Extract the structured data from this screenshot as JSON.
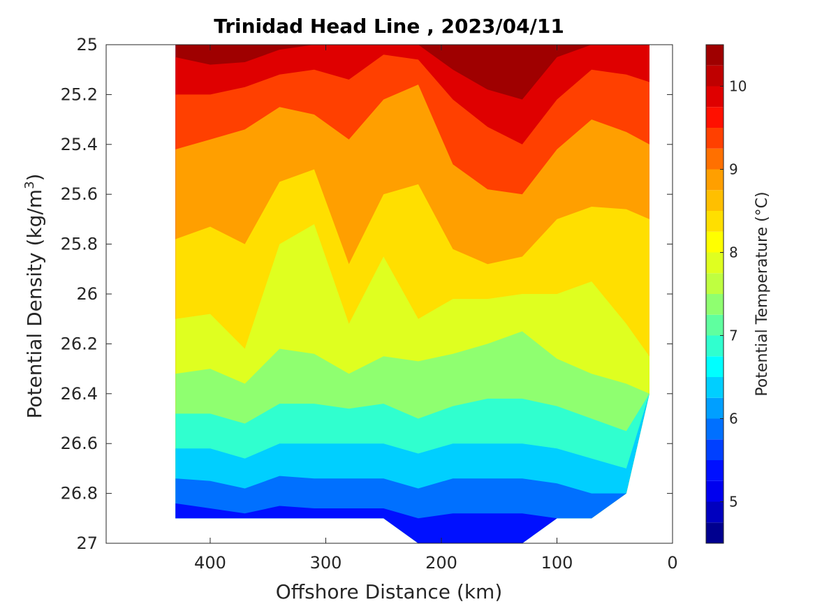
{
  "chart_data": {
    "type": "contour",
    "title": "Trinidad Head Line , 2023/04/11",
    "xlabel": "Offshore Distance (km)",
    "ylabel": "Potential Density (kg/m",
    "ylabel_superscript": "3",
    "ylabel_suffix": ")",
    "xlim": [
      490,
      0
    ],
    "ylim": [
      25,
      27
    ],
    "x_ticks": [
      400,
      300,
      200,
      100,
      0
    ],
    "x_tick_labels": [
      "400",
      "300",
      "200",
      "100",
      "0"
    ],
    "y_ticks": [
      25,
      25.2,
      25.4,
      25.6,
      25.8,
      26,
      26.2,
      26.4,
      26.6,
      26.8,
      27
    ],
    "y_tick_labels": [
      "25",
      "25.2",
      "25.4",
      "25.6",
      "25.8",
      "26",
      "26.2",
      "26.4",
      "26.6",
      "26.8",
      "27"
    ],
    "grid": false,
    "colorbar": {
      "label": "Potential Temperature (°C)",
      "range": [
        4.5,
        10.5
      ],
      "tick_values": [
        5,
        6,
        7,
        8,
        9,
        10
      ],
      "tick_labels": [
        "5",
        "6",
        "7",
        "8",
        "9",
        "10"
      ],
      "levels": [
        4.5,
        4.75,
        5,
        5.25,
        5.5,
        5.75,
        6,
        6.25,
        6.5,
        6.75,
        7,
        7.25,
        7.5,
        7.75,
        8,
        8.25,
        8.5,
        8.75,
        9,
        9.25,
        9.5,
        9.75,
        10,
        10.25,
        10.5
      ],
      "colors": [
        "#00008f",
        "#0000bf",
        "#0000ef",
        "#0010ff",
        "#0040ff",
        "#0070ff",
        "#009fff",
        "#00cfff",
        "#00ffff",
        "#30ffcf",
        "#5fff9f",
        "#8fff70",
        "#bfff40",
        "#dfff20",
        "#ffff00",
        "#ffdf00",
        "#ffbf00",
        "#ff9f00",
        "#ff7000",
        "#ff4000",
        "#ff1000",
        "#df0000",
        "#bf0000",
        "#9f0000"
      ]
    },
    "distance_km": [
      430,
      400,
      370,
      340,
      310,
      280,
      250,
      220,
      190,
      160,
      130,
      100,
      70,
      40,
      20
    ],
    "station_bottom_density": [
      26.9,
      26.9,
      26.9,
      26.9,
      26.9,
      26.9,
      26.9,
      27.0,
      27.0,
      27.0,
      27.0,
      26.9,
      26.9,
      26.8,
      26.4
    ],
    "isotherm_density": [
      {
        "temperature": 10.0,
        "density": [
          25.05,
          25.08,
          25.07,
          25.02,
          25.0,
          25.0,
          25.0,
          25.0,
          25.1,
          25.18,
          25.22,
          25.05,
          25.0,
          25.0,
          25.0
        ]
      },
      {
        "temperature": 9.5,
        "density": [
          25.2,
          25.2,
          25.17,
          25.12,
          25.1,
          25.14,
          25.04,
          25.06,
          25.22,
          25.33,
          25.4,
          25.22,
          25.1,
          25.12,
          25.15
        ]
      },
      {
        "temperature": 9.0,
        "density": [
          25.42,
          25.38,
          25.34,
          25.25,
          25.28,
          25.38,
          25.22,
          25.16,
          25.48,
          25.58,
          25.6,
          25.42,
          25.3,
          25.35,
          25.4
        ]
      },
      {
        "temperature": 8.5,
        "density": [
          25.78,
          25.73,
          25.8,
          25.55,
          25.5,
          25.88,
          25.6,
          25.56,
          25.82,
          25.88,
          25.85,
          25.7,
          25.65,
          25.66,
          25.7
        ]
      },
      {
        "temperature": 8.0,
        "density": [
          26.1,
          26.08,
          26.22,
          25.8,
          25.72,
          26.12,
          25.85,
          26.1,
          26.02,
          26.02,
          26.0,
          26.0,
          25.95,
          26.12,
          26.25
        ]
      },
      {
        "temperature": 7.5,
        "density": [
          26.32,
          26.3,
          26.36,
          26.22,
          26.24,
          26.32,
          26.25,
          26.27,
          26.24,
          26.2,
          26.15,
          26.26,
          26.32,
          26.36,
          26.4
        ]
      },
      {
        "temperature": 7.0,
        "density": [
          26.48,
          26.48,
          26.52,
          26.44,
          26.44,
          26.46,
          26.44,
          26.5,
          26.45,
          26.42,
          26.42,
          26.45,
          26.5,
          26.55,
          26.58
        ]
      },
      {
        "temperature": 6.5,
        "density": [
          26.62,
          26.62,
          26.66,
          26.6,
          26.6,
          26.6,
          26.6,
          26.64,
          26.6,
          26.6,
          26.6,
          26.62,
          26.66,
          26.7,
          26.72
        ]
      },
      {
        "temperature": 6.0,
        "density": [
          26.74,
          26.75,
          26.78,
          26.73,
          26.74,
          26.74,
          26.74,
          26.78,
          26.74,
          26.74,
          26.74,
          26.76,
          26.8,
          26.82,
          26.86
        ]
      },
      {
        "temperature": 5.5,
        "density": [
          26.84,
          26.86,
          26.88,
          26.85,
          26.86,
          26.86,
          26.86,
          26.9,
          26.88,
          26.88,
          26.88,
          26.9,
          26.92,
          26.92,
          26.95
        ]
      }
    ]
  }
}
